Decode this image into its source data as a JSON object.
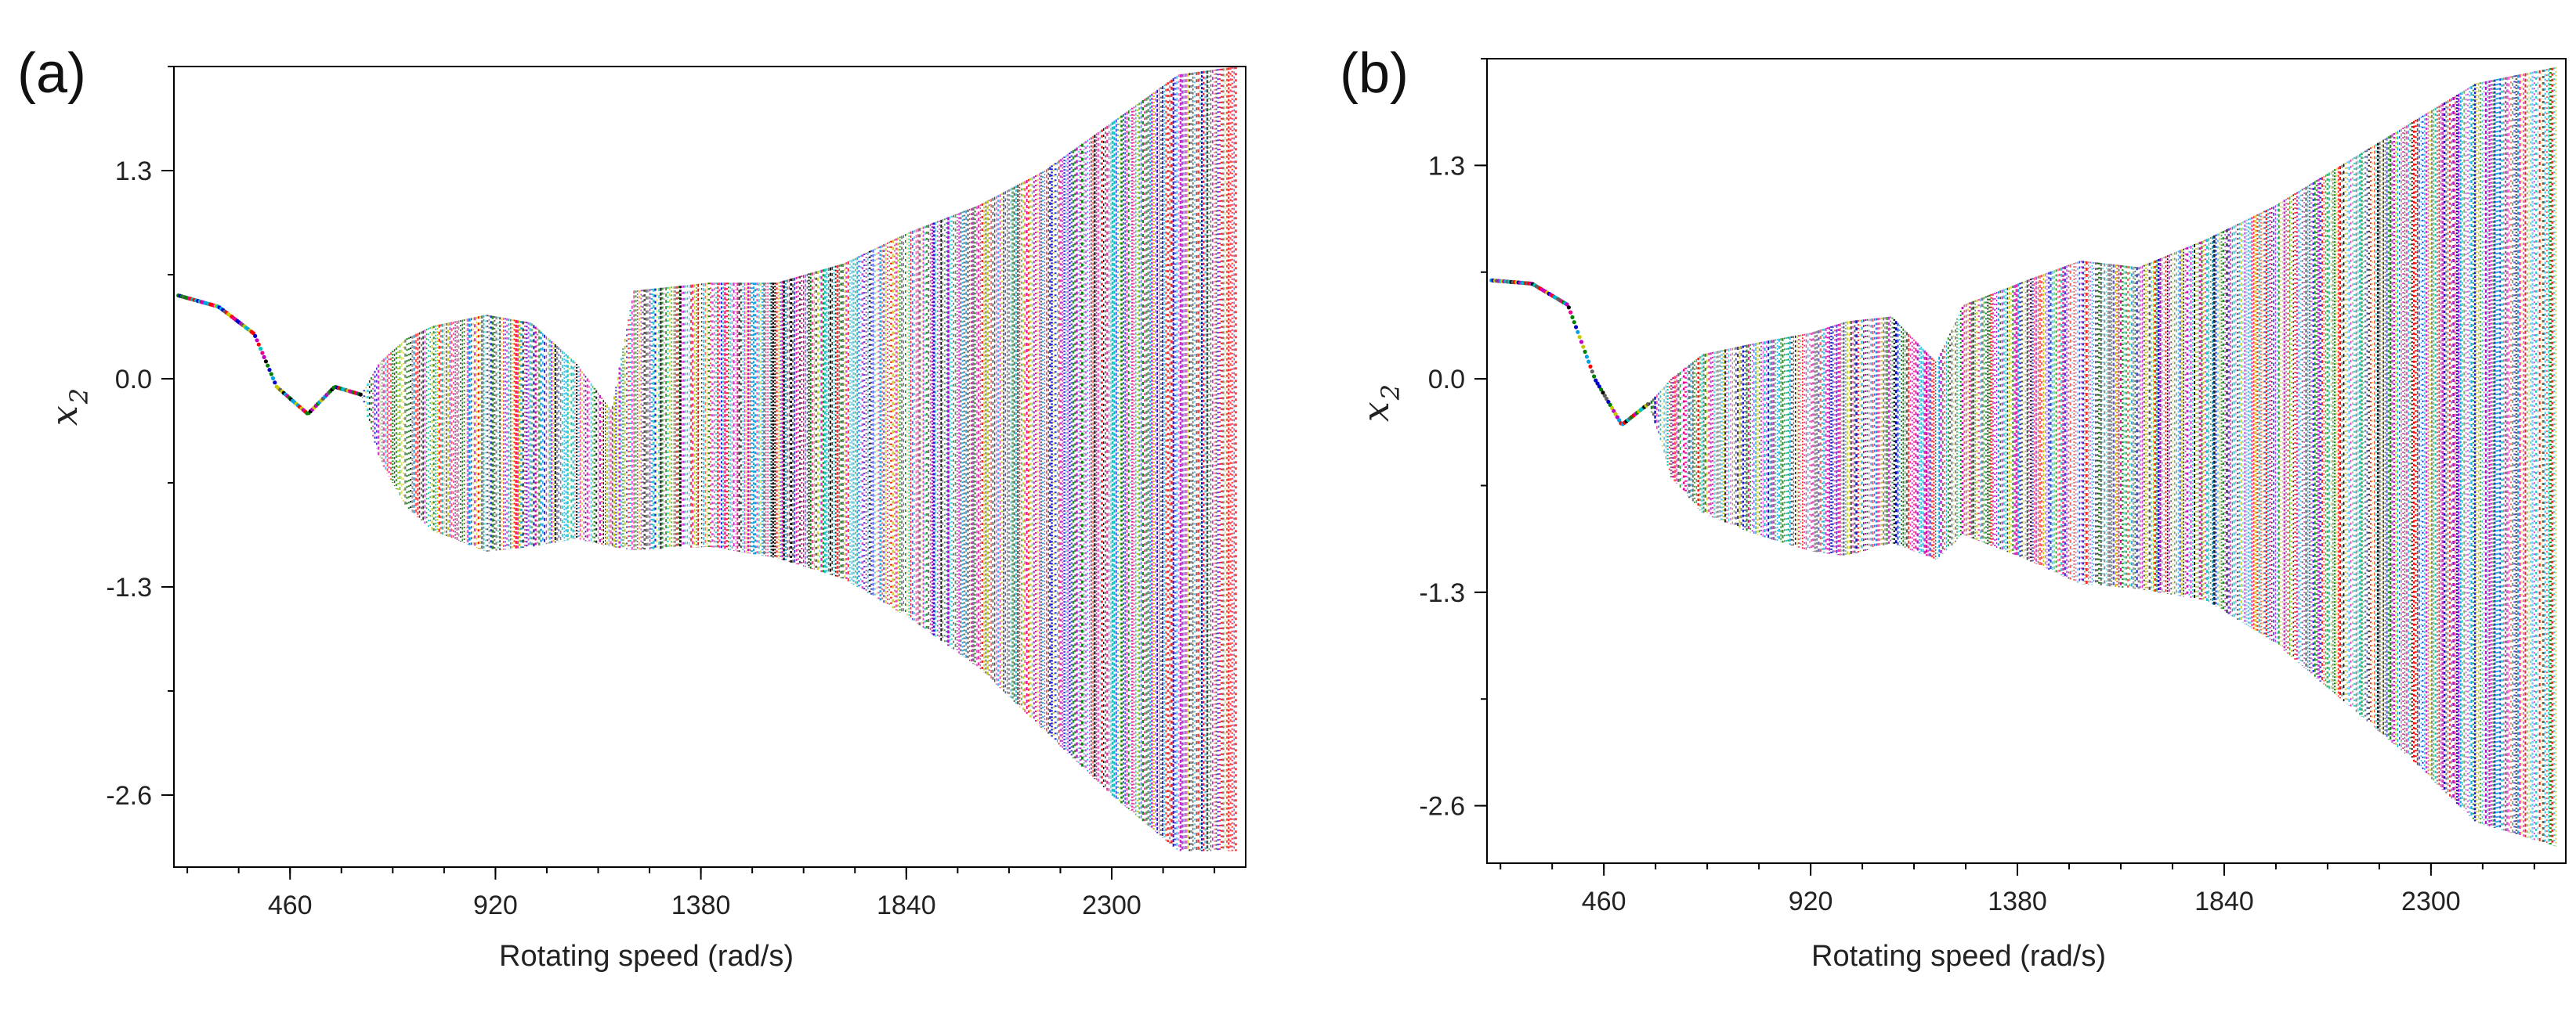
{
  "colors": {
    "palette": [
      "#000000",
      "#e8008c",
      "#00a0e6",
      "#0000c8",
      "#c8c800",
      "#c000c0",
      "#008000",
      "#00c0c0",
      "#ff0000",
      "#606060"
    ],
    "axis": "#000000"
  },
  "chart_data": [
    {
      "type": "scatter",
      "subtype": "bifurcation-diagram",
      "panel_label": "(a)",
      "xlabel": "Rotating speed (rad/s)",
      "ylabel": "x",
      "ylabel_subscript": "2",
      "xlim": [
        200,
        2600
      ],
      "ylim": [
        -3.05,
        1.95
      ],
      "xticks": [
        460,
        920,
        1380,
        1840,
        2300
      ],
      "xtick_labels": [
        "460",
        "920",
        "1380",
        "1840",
        "2300"
      ],
      "yticks": [
        1.3,
        0.0,
        -1.3,
        -2.6
      ],
      "ytick_labels": [
        "1.3",
        "0.0",
        "-1.3",
        "-2.6"
      ],
      "envelope": [
        {
          "x": 210,
          "upper": 0.52,
          "lower": 0.52
        },
        {
          "x": 300,
          "upper": 0.45,
          "lower": 0.45
        },
        {
          "x": 380,
          "upper": 0.28,
          "lower": 0.28
        },
        {
          "x": 430,
          "upper": -0.05,
          "lower": -0.05
        },
        {
          "x": 500,
          "upper": -0.22,
          "lower": -0.22
        },
        {
          "x": 560,
          "upper": -0.05,
          "lower": -0.05
        },
        {
          "x": 620,
          "upper": -0.1,
          "lower": -0.1
        },
        {
          "x": 660,
          "upper": 0.1,
          "lower": -0.5
        },
        {
          "x": 720,
          "upper": 0.25,
          "lower": -0.8
        },
        {
          "x": 780,
          "upper": 0.33,
          "lower": -0.95
        },
        {
          "x": 900,
          "upper": 0.4,
          "lower": -1.08
        },
        {
          "x": 1000,
          "upper": 0.35,
          "lower": -1.05
        },
        {
          "x": 1100,
          "upper": 0.1,
          "lower": -1.0
        },
        {
          "x": 1180,
          "upper": -0.2,
          "lower": -1.05
        },
        {
          "x": 1230,
          "upper": 0.55,
          "lower": -1.07
        },
        {
          "x": 1400,
          "upper": 0.6,
          "lower": -1.05
        },
        {
          "x": 1550,
          "upper": 0.6,
          "lower": -1.12
        },
        {
          "x": 1700,
          "upper": 0.72,
          "lower": -1.25
        },
        {
          "x": 1850,
          "upper": 0.92,
          "lower": -1.5
        },
        {
          "x": 2000,
          "upper": 1.08,
          "lower": -1.8
        },
        {
          "x": 2150,
          "upper": 1.3,
          "lower": -2.2
        },
        {
          "x": 2300,
          "upper": 1.6,
          "lower": -2.6
        },
        {
          "x": 2450,
          "upper": 1.9,
          "lower": -2.95
        },
        {
          "x": 2580,
          "upper": 1.95,
          "lower": -2.95
        }
      ]
    },
    {
      "type": "scatter",
      "subtype": "bifurcation-diagram",
      "panel_label": "(b)",
      "xlabel": "Rotating speed (rad/s)",
      "ylabel": "x",
      "ylabel_subscript": "2",
      "xlim": [
        200,
        2600
      ],
      "ylim": [
        -2.95,
        1.95
      ],
      "xticks": [
        460,
        920,
        1380,
        1840,
        2300
      ],
      "xtick_labels": [
        "460",
        "920",
        "1380",
        "1840",
        "2300"
      ],
      "yticks": [
        1.3,
        0.0,
        -1.3,
        -2.6
      ],
      "ytick_labels": [
        "1.3",
        "0.0",
        "-1.3",
        "-2.6"
      ],
      "envelope": [
        {
          "x": 210,
          "upper": 0.6,
          "lower": 0.6
        },
        {
          "x": 300,
          "upper": 0.58,
          "lower": 0.58
        },
        {
          "x": 380,
          "upper": 0.45,
          "lower": 0.45
        },
        {
          "x": 440,
          "upper": 0.0,
          "lower": 0.0
        },
        {
          "x": 500,
          "upper": -0.28,
          "lower": -0.28
        },
        {
          "x": 560,
          "upper": -0.15,
          "lower": -0.15
        },
        {
          "x": 610,
          "upper": 0.0,
          "lower": -0.6
        },
        {
          "x": 680,
          "upper": 0.15,
          "lower": -0.82
        },
        {
          "x": 800,
          "upper": 0.22,
          "lower": -0.95
        },
        {
          "x": 920,
          "upper": 0.28,
          "lower": -1.05
        },
        {
          "x": 1000,
          "upper": 0.35,
          "lower": -1.08
        },
        {
          "x": 1100,
          "upper": 0.38,
          "lower": -1.0
        },
        {
          "x": 1200,
          "upper": 0.1,
          "lower": -1.1
        },
        {
          "x": 1260,
          "upper": 0.45,
          "lower": -0.95
        },
        {
          "x": 1400,
          "upper": 0.6,
          "lower": -1.1
        },
        {
          "x": 1520,
          "upper": 0.72,
          "lower": -1.25
        },
        {
          "x": 1650,
          "upper": 0.68,
          "lower": -1.28
        },
        {
          "x": 1800,
          "upper": 0.85,
          "lower": -1.35
        },
        {
          "x": 1950,
          "upper": 1.05,
          "lower": -1.6
        },
        {
          "x": 2100,
          "upper": 1.3,
          "lower": -1.95
        },
        {
          "x": 2250,
          "upper": 1.55,
          "lower": -2.3
        },
        {
          "x": 2400,
          "upper": 1.8,
          "lower": -2.7
        },
        {
          "x": 2580,
          "upper": 1.9,
          "lower": -2.85
        }
      ]
    }
  ]
}
